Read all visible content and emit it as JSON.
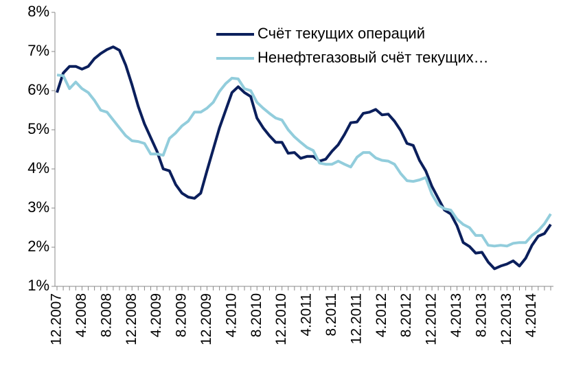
{
  "chart_data": {
    "type": "line",
    "categories": [
      "12.2007",
      null,
      null,
      null,
      "4.2008",
      null,
      null,
      null,
      "8.2008",
      null,
      null,
      null,
      "12.2008",
      null,
      null,
      null,
      "4.2009",
      null,
      null,
      null,
      "8.2009",
      null,
      null,
      null,
      "12.2009",
      null,
      null,
      null,
      "4.2010",
      null,
      null,
      null,
      "8.2010",
      null,
      null,
      null,
      "12.2010",
      null,
      null,
      null,
      "4.2011",
      null,
      null,
      null,
      "8.2011",
      null,
      null,
      null,
      "12.2011",
      null,
      null,
      null,
      "4.2012",
      null,
      null,
      null,
      "8.2012",
      null,
      null,
      null,
      "12.2012",
      null,
      null,
      null,
      "4.2013",
      null,
      null,
      null,
      "8.2013",
      null,
      null,
      null,
      "12.2013",
      null,
      null,
      null,
      "4.2014",
      null,
      null,
      null
    ],
    "series": [
      {
        "name": "Счёт текущих операций",
        "color": "#0b1f5c",
        "values": [
          5.95,
          6.45,
          6.62,
          6.62,
          6.55,
          6.62,
          6.82,
          6.95,
          7.05,
          7.12,
          7.03,
          6.65,
          6.15,
          5.6,
          5.15,
          4.8,
          4.45,
          4.0,
          3.95,
          3.6,
          3.38,
          3.28,
          3.25,
          3.38,
          3.95,
          4.5,
          5.05,
          5.5,
          5.95,
          6.1,
          5.95,
          5.85,
          5.3,
          5.05,
          4.85,
          4.68,
          4.68,
          4.4,
          4.42,
          4.27,
          4.32,
          4.32,
          4.2,
          4.25,
          4.45,
          4.62,
          4.88,
          5.18,
          5.2,
          5.42,
          5.45,
          5.52,
          5.38,
          5.4,
          5.22,
          4.98,
          4.65,
          4.6,
          4.22,
          3.95,
          3.55,
          3.25,
          2.95,
          2.85,
          2.55,
          2.12,
          2.02,
          1.85,
          1.87,
          1.62,
          1.45,
          1.52,
          1.57,
          1.65,
          1.52,
          1.72,
          2.05,
          2.28,
          2.35,
          2.58
        ]
      },
      {
        "name": "Ненефтегазовый счёт текущих…",
        "color": "#92cddc",
        "values": [
          6.4,
          6.38,
          6.05,
          6.22,
          6.05,
          5.95,
          5.75,
          5.5,
          5.45,
          5.25,
          5.05,
          4.85,
          4.72,
          4.7,
          4.65,
          4.38,
          4.38,
          4.35,
          4.78,
          4.92,
          5.1,
          5.22,
          5.45,
          5.45,
          5.55,
          5.7,
          5.98,
          6.18,
          6.32,
          6.3,
          6.05,
          6.0,
          5.7,
          5.55,
          5.42,
          5.3,
          5.25,
          5.0,
          4.82,
          4.68,
          4.55,
          4.47,
          4.15,
          4.12,
          4.12,
          4.2,
          4.12,
          4.05,
          4.3,
          4.42,
          4.42,
          4.28,
          4.22,
          4.2,
          4.12,
          3.88,
          3.7,
          3.68,
          3.72,
          3.78,
          3.35,
          3.08,
          2.98,
          2.95,
          2.72,
          2.58,
          2.5,
          2.3,
          2.3,
          2.05,
          2.03,
          2.05,
          2.03,
          2.1,
          2.12,
          2.12,
          2.3,
          2.42,
          2.6,
          2.85
        ]
      }
    ],
    "ylim": [
      1,
      8
    ],
    "yticks": [
      {
        "value": 1,
        "label": "1%"
      },
      {
        "value": 2,
        "label": "2%"
      },
      {
        "value": 3,
        "label": "3%"
      },
      {
        "value": 4,
        "label": "4%"
      },
      {
        "value": 5,
        "label": "5%"
      },
      {
        "value": 6,
        "label": "6%"
      },
      {
        "value": 7,
        "label": "7%"
      },
      {
        "value": 8,
        "label": "8%"
      }
    ],
    "grid": false,
    "legend": "upper right"
  }
}
